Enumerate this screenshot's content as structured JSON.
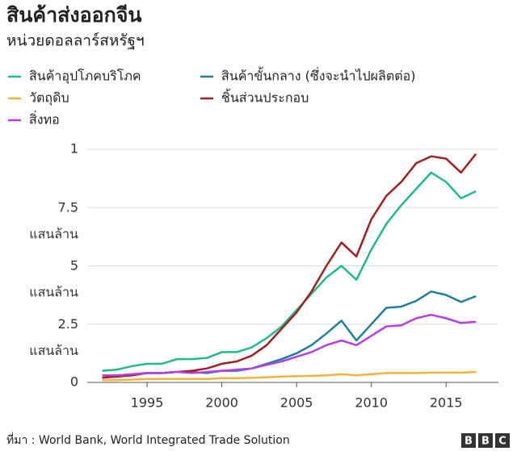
{
  "chart_data": {
    "type": "line",
    "title": "สินค้าส่งออกจีน",
    "subtitle": "หน่วยดอลลาร์สหรัฐฯ",
    "source": "ที่มา : World Bank, World Integrated Trade Solution",
    "x": [
      1992,
      1993,
      1994,
      1995,
      1996,
      1997,
      1998,
      1999,
      2000,
      2001,
      2002,
      2003,
      2004,
      2005,
      2006,
      2007,
      2008,
      2009,
      2010,
      2011,
      2012,
      2013,
      2014,
      2015,
      2016,
      2017
    ],
    "series": [
      {
        "name": "สินค้าอุปโภคบริโภค",
        "color": "#1fbc8a",
        "values": [
          0.5,
          0.55,
          0.7,
          0.8,
          0.8,
          1.0,
          1.0,
          1.05,
          1.3,
          1.3,
          1.5,
          1.9,
          2.4,
          3.1,
          3.8,
          4.5,
          5.0,
          4.4,
          5.7,
          6.8,
          7.6,
          8.3,
          9.0,
          8.6,
          7.9,
          8.2
        ]
      },
      {
        "name": "สินค้าขั้นกลาง (ซึ่งจะนำไปผลิตต่อ)",
        "color": "#1f7f9e",
        "values": [
          0.3,
          0.3,
          0.35,
          0.4,
          0.4,
          0.45,
          0.45,
          0.4,
          0.5,
          0.5,
          0.6,
          0.8,
          1.0,
          1.25,
          1.6,
          2.1,
          2.65,
          1.8,
          2.5,
          3.2,
          3.25,
          3.5,
          3.9,
          3.75,
          3.45,
          3.7
        ]
      },
      {
        "name": "วัตถุดิบ",
        "color": "#f5b335",
        "values": [
          0.1,
          0.1,
          0.12,
          0.15,
          0.15,
          0.15,
          0.15,
          0.15,
          0.18,
          0.18,
          0.2,
          0.22,
          0.25,
          0.27,
          0.28,
          0.3,
          0.35,
          0.3,
          0.35,
          0.4,
          0.4,
          0.4,
          0.42,
          0.42,
          0.42,
          0.45
        ]
      },
      {
        "name": "ชิ้นส่วนประกอบ",
        "color": "#a31e1e",
        "values": [
          0.2,
          0.25,
          0.3,
          0.4,
          0.4,
          0.45,
          0.5,
          0.6,
          0.8,
          0.9,
          1.15,
          1.6,
          2.3,
          3.0,
          3.9,
          5.0,
          6.0,
          5.4,
          7.0,
          8.0,
          8.6,
          9.4,
          9.7,
          9.6,
          9.0,
          9.8
        ]
      },
      {
        "name": "สิ่งทอ",
        "color": "#b63ee8",
        "values": [
          0.3,
          0.3,
          0.35,
          0.4,
          0.4,
          0.45,
          0.4,
          0.45,
          0.5,
          0.55,
          0.6,
          0.75,
          0.9,
          1.1,
          1.3,
          1.6,
          1.8,
          1.6,
          2.0,
          2.4,
          2.45,
          2.75,
          2.9,
          2.75,
          2.55,
          2.6
        ]
      }
    ],
    "xlim": [
      1991,
      2018.5
    ],
    "xticks": [
      1995,
      2000,
      2005,
      2010,
      2015
    ],
    "ylim": [
      0,
      10
    ],
    "yticks": [
      0,
      {
        "value": 2.5,
        "label": "2.5 แสนล้าน"
      },
      {
        "value": 5,
        "label": "5 แสนล้าน"
      },
      {
        "value": 7.5,
        "label": "7.5 แสนล้าน"
      },
      {
        "value": 10,
        "label": "1"
      }
    ],
    "grid": true
  }
}
